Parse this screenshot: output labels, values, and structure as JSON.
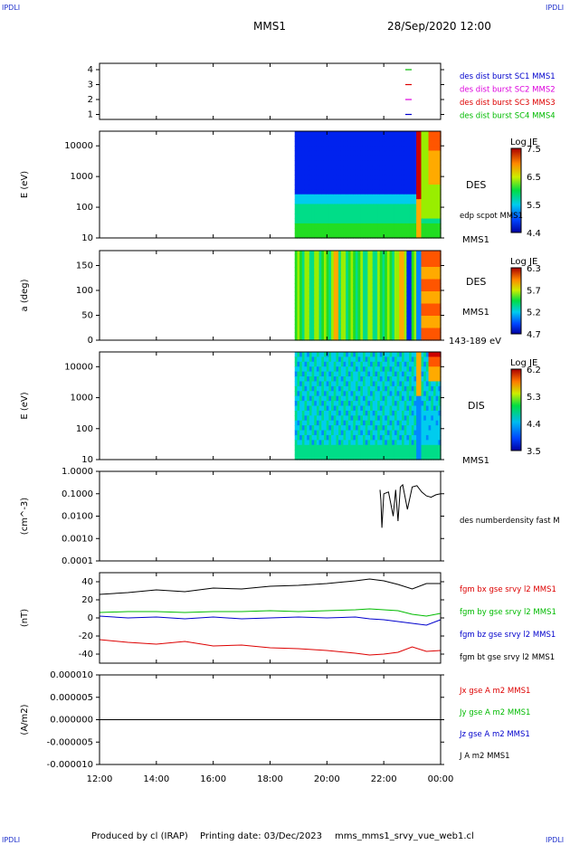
{
  "header": {
    "corner_label": "IPDLI",
    "spacecraft": "MMS1",
    "datetime": "28/Sep/2020 12:00"
  },
  "footer": {
    "produced_by": "Produced by cl (IRAP)",
    "printing_date": "Printing date: 03/Dec/2023",
    "filename": "mms_mms1_srvy_vue_web1.cl"
  },
  "colors": {
    "blue": "#0000cc",
    "magenta": "#dd00dd",
    "red": "#dd0000",
    "green": "#00bb00",
    "black": "#000000"
  },
  "chart_data": [
    {
      "type": "line",
      "panel": "spacecraft-position",
      "yticks": [
        "4",
        "3",
        "2",
        "1"
      ],
      "series": [
        {
          "name": "des dist burst SC1 MMS1",
          "color": "#0000cc",
          "level": 1
        },
        {
          "name": "des dist burst SC2 MMS2",
          "color": "#dd00dd",
          "level": 2
        },
        {
          "name": "des dist burst SC3 MMS3",
          "color": "#dd0000",
          "level": 3
        },
        {
          "name": "des dist burst SC4 MMS4",
          "color": "#00bb00",
          "level": 4
        }
      ]
    },
    {
      "type": "heatmap",
      "panel": "des-energy",
      "ylabel": "E (eV)",
      "yscale": "log",
      "ytick_labels": [
        "10000",
        "1000",
        "100",
        "10"
      ],
      "ylim": [
        10,
        30000
      ],
      "label": "DES",
      "overlay_label": "edp scpot MMS1",
      "spacecraft_label": "MMS1",
      "colorbar": {
        "title": "Log JE",
        "ticks": [
          "7.5",
          "6.5",
          "5.5",
          "4.4"
        ],
        "range": [
          4.4,
          7.5
        ]
      },
      "data_start": "18:52"
    },
    {
      "type": "heatmap",
      "panel": "des-pitch",
      "ylabel": "a (deg)",
      "ytick_labels": [
        "150",
        "100",
        "50",
        "0"
      ],
      "ylim": [
        0,
        180
      ],
      "label": "DES",
      "spacecraft_label": "MMS1",
      "energy_range": "143-189 eV",
      "colorbar": {
        "title": "Log JE",
        "ticks": [
          "6.3",
          "5.7",
          "5.2",
          "4.7"
        ],
        "range": [
          4.7,
          6.3
        ]
      },
      "data_start": "18:52"
    },
    {
      "type": "heatmap",
      "panel": "dis-energy",
      "ylabel": "E (eV)",
      "yscale": "log",
      "ytick_labels": [
        "10000",
        "1000",
        "100",
        "10"
      ],
      "ylim": [
        10,
        30000
      ],
      "label": "DIS",
      "spacecraft_label": "MMS1",
      "colorbar": {
        "title": "Log JE",
        "ticks": [
          "6.2",
          "5.3",
          "4.4",
          "3.5"
        ],
        "range": [
          3.5,
          6.2
        ]
      },
      "data_start": "18:52"
    },
    {
      "type": "line",
      "panel": "density",
      "ylabel": "(cm^-3)",
      "yscale": "log",
      "ytick_labels": [
        "1.0000",
        "0.1000",
        "0.0100",
        "0.0010",
        "0.0001"
      ],
      "ylim": [
        0.0001,
        1.0
      ],
      "series": [
        {
          "name": "des numberdensity fast M",
          "color": "#000000",
          "x": [
            "21:52",
            "21:54",
            "21:56",
            "22:00",
            "22:10",
            "22:20",
            "22:25",
            "22:30",
            "22:35",
            "22:40",
            "22:50",
            "23:00",
            "23:10",
            "23:20",
            "23:30",
            "23:40",
            "23:50",
            "24:00"
          ],
          "y": [
            0.15,
            0.05,
            0.003,
            0.1,
            0.12,
            0.01,
            0.15,
            0.006,
            0.2,
            0.25,
            0.02,
            0.2,
            0.23,
            0.12,
            0.08,
            0.07,
            0.09,
            0.1
          ]
        }
      ]
    },
    {
      "type": "line",
      "panel": "magnetic-field",
      "ylabel": "(nT)",
      "ytick_labels": [
        "40",
        "20",
        "0",
        "-20",
        "-40"
      ],
      "ylim": [
        -50,
        50
      ],
      "x": [
        "12:00",
        "13:00",
        "14:00",
        "15:00",
        "16:00",
        "17:00",
        "18:00",
        "19:00",
        "20:00",
        "21:00",
        "21:30",
        "22:00",
        "22:30",
        "23:00",
        "23:30",
        "24:00"
      ],
      "series": [
        {
          "name": "fgm bx gse srvy l2 MMS1",
          "color": "#dd0000",
          "values": [
            -24,
            -27,
            -29,
            -26,
            -31,
            -30,
            -33,
            -34,
            -36,
            -39,
            -41,
            -40,
            -38,
            -32,
            -37,
            -36
          ]
        },
        {
          "name": "fgm by gse srvy l2 MMS1",
          "color": "#00bb00",
          "values": [
            6,
            7,
            7,
            6,
            7,
            7,
            8,
            7,
            8,
            9,
            10,
            9,
            8,
            4,
            2,
            5
          ]
        },
        {
          "name": "fgm bz gse srvy l2 MMS1",
          "color": "#0000cc",
          "values": [
            2,
            0,
            1,
            -1,
            1,
            -1,
            0,
            1,
            0,
            1,
            -1,
            -2,
            -4,
            -6,
            -8,
            -2
          ]
        },
        {
          "name": "fgm bt gse srvy l2 MMS1",
          "color": "#000000",
          "values": [
            26,
            28,
            31,
            29,
            33,
            32,
            35,
            36,
            38,
            41,
            43,
            41,
            37,
            32,
            38,
            38
          ]
        }
      ]
    },
    {
      "type": "line",
      "panel": "current-density",
      "ylabel": "(A/m2)",
      "ytick_labels": [
        "0.000010",
        "0.000005",
        "0.000000",
        "-0.000005",
        "-0.000010"
      ],
      "ylim": [
        -1e-05,
        1e-05
      ],
      "series": [
        {
          "name": "Jx gse A m2 MMS1",
          "color": "#dd0000",
          "values": [
            0,
            0
          ]
        },
        {
          "name": "Jy gse A m2 MMS1",
          "color": "#00bb00",
          "values": [
            0,
            0
          ]
        },
        {
          "name": "Jz gse A m2 MMS1",
          "color": "#0000cc",
          "values": [
            0,
            0
          ]
        },
        {
          "name": "J A m2 MMS1",
          "color": "#000000",
          "values": [
            0,
            0
          ]
        }
      ],
      "xtick_labels": [
        "12:00",
        "14:00",
        "16:00",
        "18:00",
        "20:00",
        "22:00",
        "00:00"
      ]
    }
  ]
}
